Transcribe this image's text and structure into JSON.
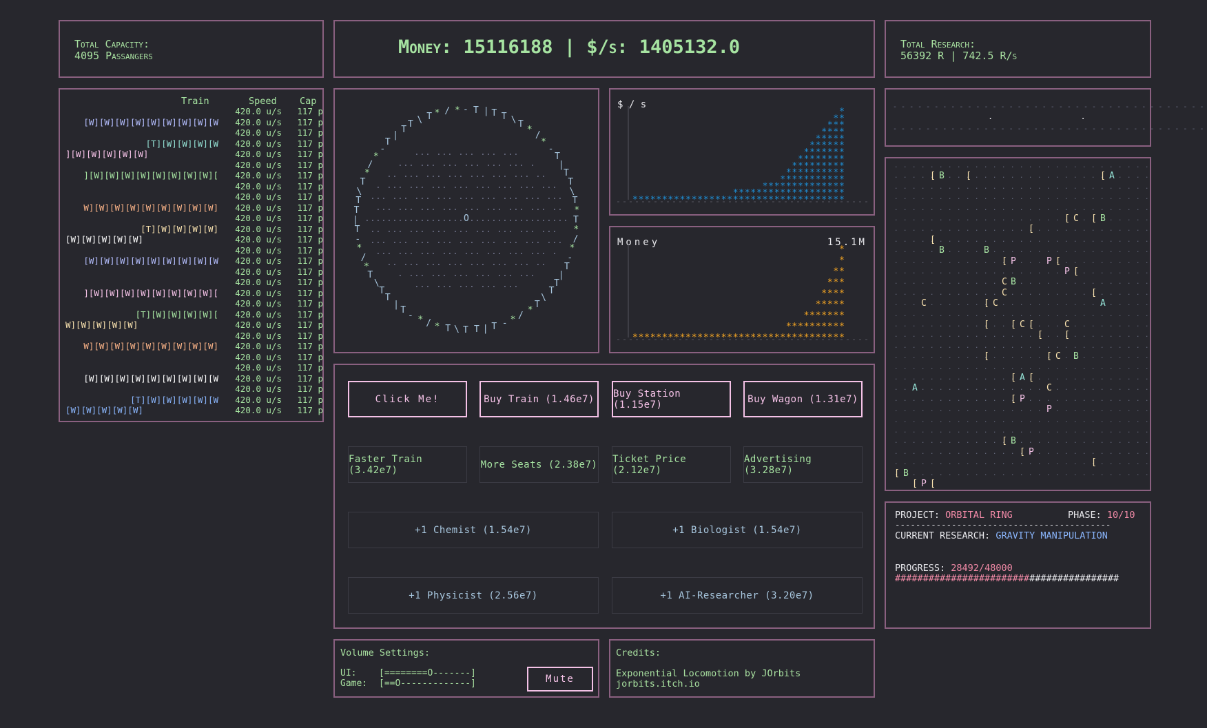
{
  "capacity": {
    "label": "Total Capacity:",
    "value": "4095 Passangers"
  },
  "money": {
    "text": "Money: 15116188 | $/s: 1405132.0"
  },
  "research": {
    "label": "Total Research:",
    "value": "56392 R | 742.5 R/s"
  },
  "trains": {
    "headers": {
      "train": "Train",
      "speed": "Speed",
      "cap": "Cap"
    },
    "speed": "420.0 u/s",
    "cap": "117 p",
    "rows": [
      {
        "text": "",
        "color": "#b4befe"
      },
      {
        "text": "[W][W][W][W][W][W][W][W][W",
        "color": "#b4befe"
      },
      {
        "text": "",
        "color": "#94e2d5"
      },
      {
        "text": "[T][W][W][W][W",
        "color": "#94e2d5"
      },
      {
        "text": "][W][W][W][W][W]",
        "color": "#f5c2e7",
        "left": true
      },
      {
        "text": "",
        "color": "#a6e3a1"
      },
      {
        "text": "][W][W][W][W][W][W][W][W][",
        "color": "#a6e3a1"
      },
      {
        "text": "",
        "color": "#fab387"
      },
      {
        "text": "",
        "color": "#fab387"
      },
      {
        "text": "W][W][W][W][W][W][W][W][W]",
        "color": "#fab387"
      },
      {
        "text": "",
        "color": "#f9e2af"
      },
      {
        "text": "[T][W][W][W][W]",
        "color": "#f9e2af"
      },
      {
        "text": "[W][W][W][W][W]",
        "color": "#ffffff",
        "left": true
      },
      {
        "text": "",
        "color": "#cba6f7"
      },
      {
        "text": "[W][W][W][W][W][W][W][W][W",
        "color": "#b4befe"
      },
      {
        "text": "",
        "color": "#f5c2e7"
      },
      {
        "text": "",
        "color": "#f5c2e7"
      },
      {
        "text": "][W][W][W][W][W][W][W][W][",
        "color": "#f5c2e7"
      },
      {
        "text": "",
        "color": "#a6e3a1"
      },
      {
        "text": "[T][W][W][W][W][",
        "color": "#a6e3a1"
      },
      {
        "text": "W][W][W][W][W]",
        "color": "#f9e2af",
        "left": true
      },
      {
        "text": "",
        "color": "#fab387"
      },
      {
        "text": "W][W][W][W][W][W][W][W][W]",
        "color": "#fab387"
      },
      {
        "text": "",
        "color": "#ffffff"
      },
      {
        "text": "",
        "color": "#ffffff"
      },
      {
        "text": "[W][W][W][W][W][W][W][W][W",
        "color": "#ffffff"
      },
      {
        "text": "",
        "color": "#89b4fa"
      },
      {
        "text": "[T][W][W][W][W][W",
        "color": "#89b4fa"
      },
      {
        "text": "[W][W][W][W][W]",
        "color": "#89b4fa",
        "left": true
      }
    ]
  },
  "chart_data": [
    {
      "type": "scatter",
      "title": "$ / s",
      "color": "#1e90d8",
      "x": [
        1,
        2,
        3,
        4,
        5,
        6,
        7,
        8,
        9,
        10,
        11,
        12,
        13,
        14,
        15,
        16,
        17,
        18,
        19,
        20,
        21,
        22,
        23,
        24,
        25,
        26,
        27,
        28,
        29,
        30,
        31,
        32,
        33,
        34,
        35,
        36
      ],
      "y": [
        0,
        0,
        0,
        0,
        0,
        0,
        0,
        0,
        0,
        0,
        0,
        0,
        0,
        0,
        0,
        0,
        0,
        1,
        1,
        1,
        1,
        1,
        2,
        2,
        2,
        3,
        4,
        5,
        6,
        7,
        8,
        9,
        10,
        11,
        12,
        13
      ]
    },
    {
      "type": "scatter",
      "title": "Money",
      "max_label": "15.1M",
      "color": "#f5a623",
      "x": [
        1,
        2,
        3,
        4,
        5,
        6,
        7,
        8,
        9,
        10,
        11,
        12,
        13,
        14,
        15,
        16,
        17,
        18,
        19,
        20,
        21,
        22,
        23,
        24,
        25,
        26,
        27,
        28,
        29,
        30,
        31,
        32,
        33,
        34,
        35,
        36
      ],
      "y": [
        0,
        0,
        0,
        0,
        0,
        0,
        0,
        0,
        0,
        0,
        0,
        0,
        0,
        0,
        0,
        0,
        0,
        0,
        0,
        0,
        0,
        0,
        0,
        0,
        0,
        0,
        1,
        1,
        1,
        2,
        2,
        3,
        4,
        5,
        6,
        8
      ]
    }
  ],
  "buttons": {
    "click": "Click Me!",
    "buy_train": "Buy Train (1.46e7)",
    "buy_station": "Buy Station (1.15e7)",
    "buy_wagon": "Buy Wagon (1.31e7)",
    "faster_train": "Faster Train (3.42e7)",
    "more_seats": "More Seats (2.38e7)",
    "ticket_price": "Ticket Price (2.12e7)",
    "advertising": "Advertising (3.28e7)",
    "chemist": "+1 Chemist (1.54e7)",
    "biologist": "+1 Biologist (1.54e7)",
    "physicist": "+1 Physicist (2.56e7)",
    "ai_researcher": "+1 AI-Researcher (3.20e7)"
  },
  "volume": {
    "title": "Volume Settings:",
    "ui_label": "UI:",
    "ui_bar": "[========O-------]",
    "game_label": "Game:",
    "game_bar": "[==O-------------]",
    "mute": "Mute"
  },
  "credits": {
    "title": "Credits:",
    "line1": "Exponential Locomotion by JOrbits",
    "line2": "jorbits.itch.io"
  },
  "project": {
    "project_label": "PROJECT:",
    "project_name": "ORBITAL RING",
    "phase_label": "PHASE:",
    "phase_value": "10/10",
    "divider": "------------------------------------------",
    "research_label": "CURRENT RESEARCH:",
    "research_name": "GRAVITY MANIPULATION",
    "progress_label": "PROGRESS:",
    "progress_value": "28492/48000",
    "progress_fraction": 0.594,
    "bar_filled": "########################",
    "bar_empty": "################"
  },
  "strip": {
    "line1": "- - - - - - - - - - - - - - - - - - - - - - - - - - - - - - - - - - - - - - - -",
    "line2": "- - - - - - - - - - - - - - - - - - - - - - - - - - - - - - - - - - - - - - - -",
    "marks": ". ."
  },
  "lab_letters": [
    {
      "t": "[",
      "c": "#f9e2af"
    },
    {
      "t": "B",
      "c": "#a6e3a1"
    },
    {
      "t": "[",
      "c": "#f9e2af"
    },
    {
      "t": "[",
      "c": "#f9e2af"
    },
    {
      "t": "A",
      "c": "#94e2d5"
    },
    {
      "t": "[",
      "c": "#f9e2af"
    },
    {
      "t": "C",
      "c": "#f9e2af"
    },
    {
      "t": "[",
      "c": "#f9e2af"
    },
    {
      "t": "B",
      "c": "#a6e3a1"
    },
    {
      "t": "[",
      "c": "#f9e2af"
    },
    {
      "t": "[",
      "c": "#f9e2af"
    },
    {
      "t": "B",
      "c": "#a6e3a1"
    },
    {
      "t": "B",
      "c": "#a6e3a1"
    },
    {
      "t": "[",
      "c": "#f9e2af"
    },
    {
      "t": "P",
      "c": "#f5c2e7"
    },
    {
      "t": "P",
      "c": "#f5c2e7"
    },
    {
      "t": "[",
      "c": "#f9e2af"
    },
    {
      "t": "P",
      "c": "#f5c2e7"
    },
    {
      "t": "[",
      "c": "#f9e2af"
    },
    {
      "t": "C",
      "c": "#f9e2af"
    },
    {
      "t": "B",
      "c": "#a6e3a1"
    },
    {
      "t": "C",
      "c": "#f9e2af"
    },
    {
      "t": "C",
      "c": "#f9e2af"
    },
    {
      "t": "[",
      "c": "#f9e2af"
    },
    {
      "t": "C",
      "c": "#f9e2af"
    },
    {
      "t": "[",
      "c": "#f9e2af"
    },
    {
      "t": "A",
      "c": "#94e2d5"
    },
    {
      "t": "[",
      "c": "#f9e2af"
    },
    {
      "t": "[",
      "c": "#f9e2af"
    },
    {
      "t": "C",
      "c": "#f9e2af"
    },
    {
      "t": "[",
      "c": "#f9e2af"
    },
    {
      "t": "[",
      "c": "#f9e2af"
    },
    {
      "t": "C",
      "c": "#f9e2af"
    },
    {
      "t": "[",
      "c": "#f9e2af"
    },
    {
      "t": "[",
      "c": "#f9e2af"
    },
    {
      "t": "[",
      "c": "#f9e2af"
    },
    {
      "t": "C",
      "c": "#f9e2af"
    },
    {
      "t": "B",
      "c": "#a6e3a1"
    },
    {
      "t": "[",
      "c": "#f9e2af"
    },
    {
      "t": "A",
      "c": "#94e2d5"
    },
    {
      "t": "[",
      "c": "#f9e2af"
    },
    {
      "t": "A",
      "c": "#94e2d5"
    },
    {
      "t": "C",
      "c": "#f9e2af"
    },
    {
      "t": "[",
      "c": "#f9e2af"
    },
    {
      "t": "P",
      "c": "#f5c2e7"
    },
    {
      "t": "P",
      "c": "#f5c2e7"
    },
    {
      "t": "[",
      "c": "#f9e2af"
    },
    {
      "t": "B",
      "c": "#a6e3a1"
    },
    {
      "t": "[",
      "c": "#f9e2af"
    },
    {
      "t": "P",
      "c": "#f5c2e7"
    },
    {
      "t": "[",
      "c": "#f9e2af"
    },
    {
      "t": "[",
      "c": "#f9e2af"
    },
    {
      "t": "B",
      "c": "#a6e3a1"
    },
    {
      "t": "[",
      "c": "#f9e2af"
    },
    {
      "t": "P",
      "c": "#f5c2e7"
    },
    {
      "t": "[",
      "c": "#f9e2af"
    }
  ]
}
